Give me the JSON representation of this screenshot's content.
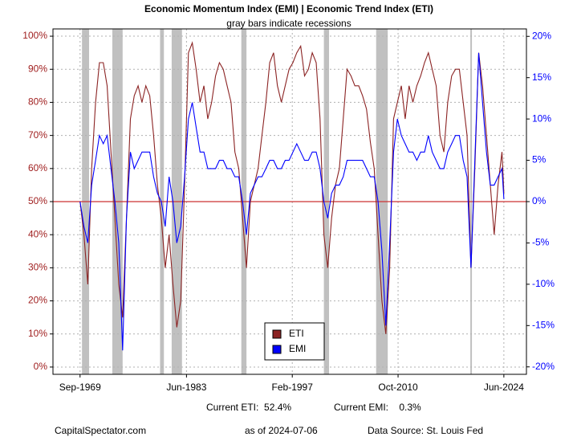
{
  "chart_data": {
    "type": "line",
    "title": "Economic Momentum Index (EMI) | Economic Trend Index (ETI)",
    "subtitle": "gray bars indicate recessions",
    "x": [
      "1969-09",
      "1970-03",
      "1970-09",
      "1971-03",
      "1971-09",
      "1972-03",
      "1972-09",
      "1973-03",
      "1973-09",
      "1974-03",
      "1974-09",
      "1975-03",
      "1975-09",
      "1976-03",
      "1976-09",
      "1977-03",
      "1977-09",
      "1978-03",
      "1978-09",
      "1979-03",
      "1979-09",
      "1980-03",
      "1980-09",
      "1981-03",
      "1981-09",
      "1982-03",
      "1982-09",
      "1983-03",
      "1983-09",
      "1984-03",
      "1984-09",
      "1985-03",
      "1985-09",
      "1986-03",
      "1986-09",
      "1987-03",
      "1987-09",
      "1988-03",
      "1988-09",
      "1989-03",
      "1989-09",
      "1990-03",
      "1990-09",
      "1991-03",
      "1991-09",
      "1992-03",
      "1992-09",
      "1993-03",
      "1993-09",
      "1994-03",
      "1994-09",
      "1995-03",
      "1995-09",
      "1996-03",
      "1996-09",
      "1997-03",
      "1997-09",
      "1998-03",
      "1998-09",
      "1999-03",
      "1999-09",
      "2000-03",
      "2000-09",
      "2001-03",
      "2001-09",
      "2002-03",
      "2002-09",
      "2003-03",
      "2003-09",
      "2004-03",
      "2004-09",
      "2005-03",
      "2005-09",
      "2006-03",
      "2006-09",
      "2007-03",
      "2007-09",
      "2008-03",
      "2008-09",
      "2009-03",
      "2009-09",
      "2010-03",
      "2010-09",
      "2011-03",
      "2011-09",
      "2012-03",
      "2012-09",
      "2013-03",
      "2013-09",
      "2014-03",
      "2014-09",
      "2015-03",
      "2015-09",
      "2016-03",
      "2016-09",
      "2017-03",
      "2017-09",
      "2018-03",
      "2018-09",
      "2019-03",
      "2019-09",
      "2020-03",
      "2020-09",
      "2021-03",
      "2021-09",
      "2022-03",
      "2022-09",
      "2023-03",
      "2023-09",
      "2024-03",
      "2024-06"
    ],
    "series": [
      {
        "name": "ETI",
        "color": "#8b2323",
        "axis": "y",
        "values": [
          50,
          40,
          25,
          60,
          80,
          92,
          92,
          85,
          65,
          45,
          25,
          15,
          45,
          75,
          82,
          85,
          80,
          85,
          82,
          70,
          55,
          45,
          30,
          40,
          25,
          12,
          20,
          55,
          95,
          98,
          90,
          80,
          85,
          75,
          80,
          88,
          92,
          90,
          85,
          80,
          65,
          60,
          45,
          30,
          50,
          55,
          60,
          70,
          80,
          92,
          95,
          85,
          80,
          85,
          90,
          92,
          95,
          97,
          88,
          90,
          95,
          92,
          75,
          40,
          30,
          45,
          55,
          60,
          75,
          90,
          88,
          85,
          85,
          82,
          78,
          68,
          60,
          40,
          20,
          10,
          30,
          75,
          80,
          85,
          75,
          85,
          80,
          85,
          88,
          92,
          95,
          90,
          85,
          70,
          65,
          80,
          88,
          90,
          90,
          80,
          70,
          30,
          60,
          95,
          85,
          70,
          55,
          40,
          55,
          65,
          52.4
        ]
      },
      {
        "name": "EMI",
        "color": "#0000ff",
        "axis": "y2",
        "values": [
          0,
          -3,
          -5,
          2,
          5,
          8,
          7,
          8,
          4,
          0,
          -5,
          -18,
          -2,
          6,
          4,
          5,
          6,
          6,
          6,
          3,
          1,
          0,
          -3,
          3,
          0,
          -5,
          -3,
          3,
          10,
          12,
          9,
          6,
          6,
          4,
          4,
          4,
          5,
          5,
          4,
          4,
          3,
          3,
          0,
          -4,
          1,
          2,
          3,
          3,
          4,
          5,
          5,
          4,
          4,
          5,
          5,
          6,
          7,
          6,
          5,
          5,
          6,
          6,
          4,
          0,
          -2,
          1,
          2,
          2,
          3,
          5,
          5,
          5,
          5,
          5,
          4,
          3,
          3,
          0,
          -6,
          -15,
          -5,
          6,
          10,
          8,
          7,
          6,
          6,
          5,
          6,
          6,
          8,
          6,
          5,
          4,
          4,
          6,
          7,
          8,
          8,
          5,
          3,
          -8,
          5,
          18,
          12,
          6,
          2,
          2,
          3,
          4,
          0.3
        ]
      }
    ],
    "recessions": [
      [
        "1969-12",
        "1970-11"
      ],
      [
        "1973-11",
        "1975-03"
      ],
      [
        "1980-01",
        "1980-07"
      ],
      [
        "1981-07",
        "1982-11"
      ],
      [
        "1990-07",
        "1991-03"
      ],
      [
        "2001-03",
        "2001-11"
      ],
      [
        "2007-12",
        "2009-06"
      ],
      [
        "2020-02",
        "2020-04"
      ]
    ],
    "reference_line": {
      "y": 50,
      "color": "#cc3333"
    },
    "xlim": [
      "1966-03",
      "2027-05"
    ],
    "xticks": [
      {
        "value": "1969-09",
        "label": "Sep-1969"
      },
      {
        "value": "1983-06",
        "label": "Jun-1983"
      },
      {
        "value": "1997-02",
        "label": "Feb-1997"
      },
      {
        "value": "2010-10",
        "label": "Oct-2010"
      },
      {
        "value": "2024-06",
        "label": "Jun-2024"
      }
    ],
    "ylim": [
      -2.2,
      102.2
    ],
    "yticks": [
      {
        "value": 0,
        "label": "0%"
      },
      {
        "value": 10,
        "label": "10%"
      },
      {
        "value": 20,
        "label": "20%"
      },
      {
        "value": 30,
        "label": "30%"
      },
      {
        "value": 40,
        "label": "40%"
      },
      {
        "value": 50,
        "label": "50%"
      },
      {
        "value": 60,
        "label": "60%"
      },
      {
        "value": 70,
        "label": "70%"
      },
      {
        "value": 80,
        "label": "80%"
      },
      {
        "value": 90,
        "label": "90%"
      },
      {
        "value": 100,
        "label": "100%"
      }
    ],
    "y2lim": [
      -20.9,
      20.9
    ],
    "y2ticks": [
      {
        "value": -20,
        "label": "-20%"
      },
      {
        "value": -15,
        "label": "-15%"
      },
      {
        "value": -10,
        "label": "-10%"
      },
      {
        "value": -5,
        "label": "-5%"
      },
      {
        "value": 0,
        "label": "0%"
      },
      {
        "value": 5,
        "label": "5%"
      },
      {
        "value": 10,
        "label": "10%"
      },
      {
        "value": 15,
        "label": "15%"
      },
      {
        "value": 20,
        "label": "20%"
      }
    ],
    "grid": true,
    "legend": "bottom",
    "annotations": [
      "Current ETI:  52.4%",
      "Current EMI:    0.3%"
    ],
    "footer": [
      "CapitalSpectator.com",
      "as of 2024-07-06",
      "Data Source: St. Louis Fed"
    ]
  }
}
